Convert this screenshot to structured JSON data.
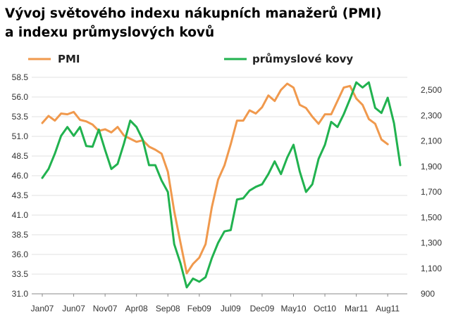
{
  "title_lines": [
    "Vývoj světového indexu nákupních manažerů (PMI)",
    "a indexu průmyslových kovů"
  ],
  "colors": {
    "pmi": "#F0994D",
    "metals": "#21B24F",
    "grid": "#e2e2e2",
    "axis": "#888888",
    "text": "#333333"
  },
  "chart_data": {
    "type": "line",
    "title": "Vývoj světového indexu nákupních manažerů (PMI) a indexu průmyslových kovů",
    "legend": {
      "placement": "top",
      "entries": [
        "PMI",
        "průmyslové kovy"
      ]
    },
    "x_tick_labels": [
      "Jan07",
      "Jun07",
      "Nov07",
      "Apr08",
      "Sep08",
      "Feb09",
      "Jul09",
      "Dec09",
      "May10",
      "Oct10",
      "Mar11",
      "Aug11"
    ],
    "left_axis": {
      "ylim": [
        31.0,
        58.5
      ],
      "tick_labels": [
        "58.5",
        "56.0",
        "53.5",
        "51.0",
        "48.5",
        "46.0",
        "43.5",
        "41.0",
        "38.5",
        "36.0",
        "33.5",
        "31.0"
      ]
    },
    "right_axis": {
      "ylim": [
        900,
        2600
      ],
      "tick_labels": [
        "2,500",
        "2,300",
        "2,100",
        "1,900",
        "1,700",
        "1,500",
        "1,300",
        "1,100",
        "900"
      ]
    },
    "grid": true,
    "series": [
      {
        "name": "PMI",
        "axis": "left",
        "color": "#F0994D",
        "values": [
          52.7,
          53.6,
          53.0,
          53.9,
          53.8,
          54.1,
          53.1,
          52.9,
          52.5,
          51.7,
          51.9,
          51.5,
          52.2,
          51.1,
          50.7,
          50.3,
          50.5,
          49.7,
          49.3,
          48.8,
          46.5,
          41.5,
          37.5,
          33.6,
          34.8,
          35.6,
          37.3,
          42.0,
          45.5,
          47.3,
          50.0,
          53.0,
          53.0,
          54.3,
          53.9,
          54.7,
          56.2,
          55.5,
          56.9,
          57.7,
          57.2,
          55.0,
          54.6,
          53.5,
          52.6,
          53.8,
          53.8,
          55.5,
          57.2,
          57.4,
          55.8,
          55.0,
          53.2,
          52.6,
          50.6,
          50.0
        ]
      },
      {
        "name": "průmyslové kovy",
        "axis": "right",
        "color": "#21B24F",
        "values": [
          1810,
          1880,
          2000,
          2140,
          2210,
          2140,
          2210,
          2060,
          2055,
          2190,
          2030,
          1880,
          1920,
          2080,
          2260,
          2210,
          2110,
          1910,
          1910,
          1790,
          1700,
          1290,
          1140,
          950,
          1020,
          995,
          1030,
          1180,
          1300,
          1390,
          1400,
          1640,
          1650,
          1710,
          1740,
          1760,
          1840,
          1940,
          1840,
          1970,
          2070,
          1860,
          1700,
          1760,
          1960,
          2070,
          2250,
          2210,
          2310,
          2430,
          2560,
          2520,
          2560,
          2360,
          2320,
          2440,
          2240,
          1910
        ]
      }
    ]
  }
}
